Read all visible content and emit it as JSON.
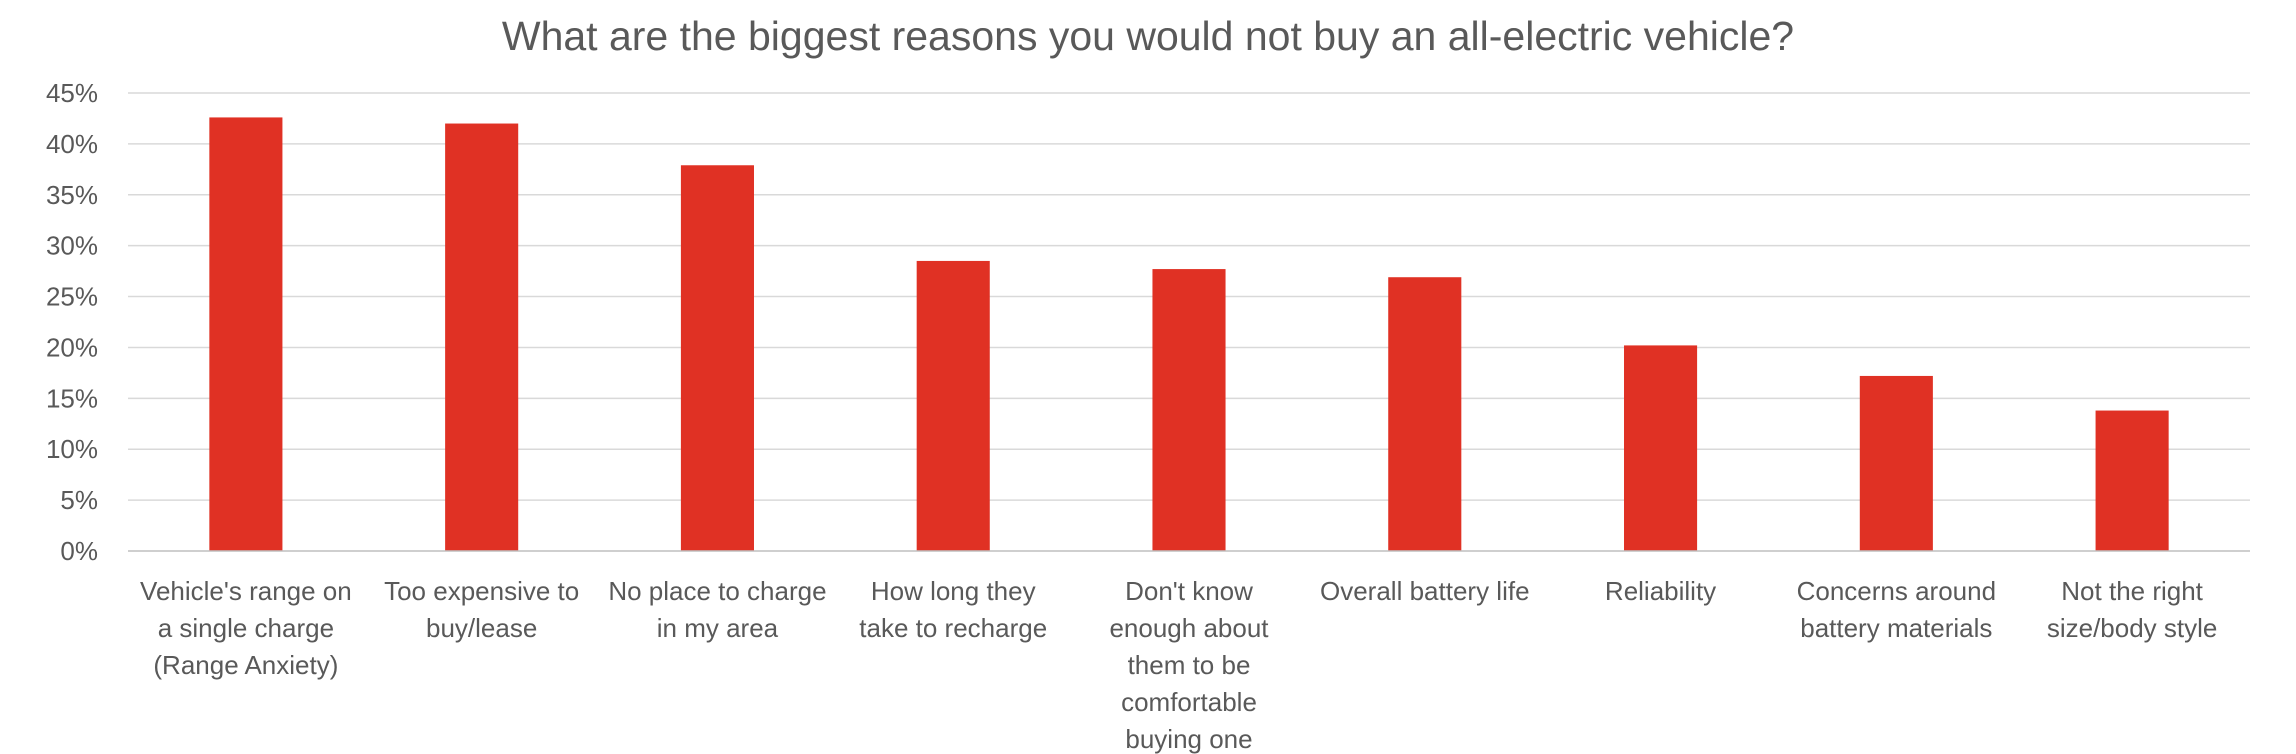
{
  "chart_data": {
    "type": "bar",
    "title": "What are the biggest reasons you would not buy an all-electric vehicle?",
    "xlabel": "",
    "ylabel": "",
    "ylim": [
      0,
      45
    ],
    "yticks": [
      "0%",
      "5%",
      "10%",
      "15%",
      "20%",
      "25%",
      "30%",
      "35%",
      "40%",
      "45%"
    ],
    "grid": true,
    "legend": "none",
    "bar_color": "#e03124",
    "categories": [
      [
        "Vehicle's range on",
        "a single charge",
        "(Range Anxiety)"
      ],
      [
        "Too expensive to",
        "buy/lease"
      ],
      [
        "No place to charge",
        "in my area"
      ],
      [
        "How long they",
        "take to recharge"
      ],
      [
        "Don't know",
        "enough about",
        "them to be",
        "comfortable",
        "buying one"
      ],
      [
        "Overall battery life"
      ],
      [
        "Reliability"
      ],
      [
        "Concerns around",
        "battery materials"
      ],
      [
        "Not the right",
        "size/body style"
      ]
    ],
    "values": [
      42.6,
      42.0,
      37.9,
      28.5,
      27.7,
      26.9,
      20.2,
      17.2,
      13.8
    ]
  }
}
